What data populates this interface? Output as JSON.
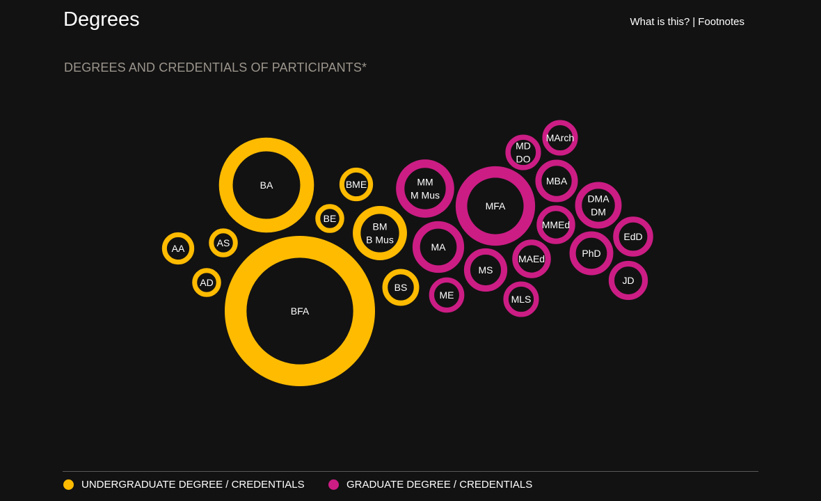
{
  "header": {
    "title": "Degrees",
    "links": {
      "what_is_this": "What is this?",
      "separator": "|",
      "footnotes": "Footnotes"
    }
  },
  "chart_subtitle": "DEGREES AND CREDENTIALS OF PARTICIPANTS*",
  "colors": {
    "background": "#121212",
    "undergraduate": "#ffbb00",
    "graduate": "#cc1d85"
  },
  "legend": {
    "undergraduate": "UNDERGRADUATE DEGREE / CREDENTIALS",
    "graduate": "GRADUATE DEGREE / CREDENTIALS"
  },
  "chart_data": {
    "type": "bubble",
    "title": "DEGREES AND CREDENTIALS OF PARTICIPANTS*",
    "series": [
      {
        "name": "UNDERGRADUATE DEGREE / CREDENTIALS",
        "color": "#ffbb00"
      },
      {
        "name": "GRADUATE DEGREE / CREDENTIALS",
        "color": "#cc1d85"
      }
    ],
    "bubbles": [
      {
        "label": [
          "BFA"
        ],
        "series": "undergraduate",
        "size": 100
      },
      {
        "label": [
          "BA"
        ],
        "series": "undergraduate",
        "size": 40
      },
      {
        "label": [
          "BM",
          "B Mus"
        ],
        "series": "undergraduate",
        "size": 13
      },
      {
        "label": [
          "BS"
        ],
        "series": "undergraduate",
        "size": 6
      },
      {
        "label": [
          "BME"
        ],
        "series": "undergraduate",
        "size": 5
      },
      {
        "label": [
          "AA"
        ],
        "series": "undergraduate",
        "size": 4.6
      },
      {
        "label": [
          "AS"
        ],
        "series": "undergraduate",
        "size": 3.7
      },
      {
        "label": [
          "BE"
        ],
        "series": "undergraduate",
        "size": 3.7
      },
      {
        "label": [
          "AD"
        ],
        "series": "undergraduate",
        "size": 3.7
      },
      {
        "label": [
          "MFA"
        ],
        "series": "graduate",
        "size": 28
      },
      {
        "label": [
          "MM",
          "M Mus"
        ],
        "series": "graduate",
        "size": 15
      },
      {
        "label": [
          "MA"
        ],
        "series": "graduate",
        "size": 11.8
      },
      {
        "label": [
          "MS"
        ],
        "series": "graduate",
        "size": 8.3
      },
      {
        "label": [
          "DMA",
          "DM"
        ],
        "series": "graduate",
        "size": 9.6
      },
      {
        "label": [
          "PhD"
        ],
        "series": "graduate",
        "size": 8.5
      },
      {
        "label": [
          "MMEd"
        ],
        "series": "graduate",
        "size": 6.6
      },
      {
        "label": [
          "MBA"
        ],
        "series": "graduate",
        "size": 8
      },
      {
        "label": [
          "MAEd"
        ],
        "series": "graduate",
        "size": 6.6
      },
      {
        "label": [
          "EdD"
        ],
        "series": "graduate",
        "size": 7.1
      },
      {
        "label": [
          "JD"
        ],
        "series": "graduate",
        "size": 6.8
      },
      {
        "label": [
          "MArch"
        ],
        "series": "graduate",
        "size": 5.6
      },
      {
        "label": [
          "MD",
          "DO"
        ],
        "series": "graduate",
        "size": 5.6
      },
      {
        "label": [
          "MLS"
        ],
        "series": "graduate",
        "size": 5.6
      },
      {
        "label": [
          "ME"
        ],
        "series": "graduate",
        "size": 5.5
      }
    ]
  }
}
